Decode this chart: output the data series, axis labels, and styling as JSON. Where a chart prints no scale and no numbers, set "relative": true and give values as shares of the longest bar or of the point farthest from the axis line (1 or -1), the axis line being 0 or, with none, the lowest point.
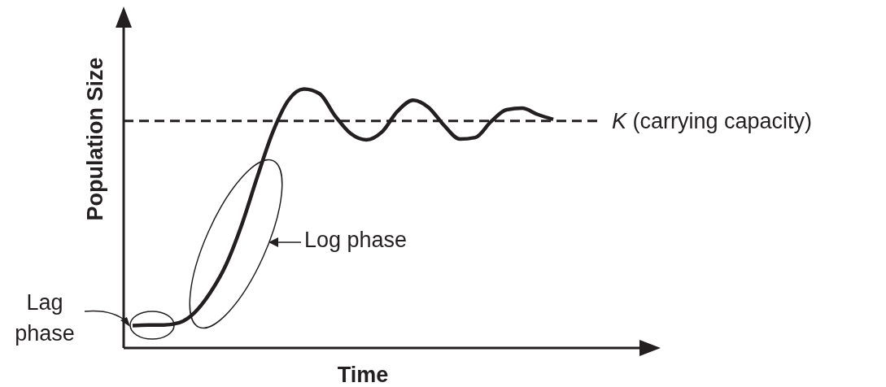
{
  "chart_data": {
    "type": "line",
    "xlabel": "Time",
    "ylabel": "Population Size",
    "relative": true,
    "marker": "none",
    "line_style": "solid",
    "categories": [
      null,
      null,
      null,
      null,
      null,
      null,
      null,
      null,
      null,
      null,
      null,
      null,
      null,
      null,
      null,
      null,
      null,
      null,
      null,
      null,
      null,
      null,
      null,
      null,
      null,
      null,
      null,
      null
    ],
    "series": [
      {
        "color": "#231f20",
        "values": [
          0.086,
          0.089,
          0.089,
          0.098,
          0.138,
          0.215,
          0.322,
          0.475,
          0.66,
          0.834,
          0.957,
          1,
          0.982,
          0.896,
          0.828,
          0.804,
          0.834,
          0.914,
          0.957,
          0.929,
          0.859,
          0.807,
          0.813,
          0.874,
          0.92,
          0.926,
          0.902,
          0.883
        ]
      }
    ],
    "ref_lines": [
      {
        "axis": "y",
        "value": 0.877,
        "label": "K (carrying capacity)",
        "line_style": "dashed",
        "color": "#231f20"
      }
    ],
    "annotations": [
      "Lag phase",
      "Log phase"
    ]
  }
}
